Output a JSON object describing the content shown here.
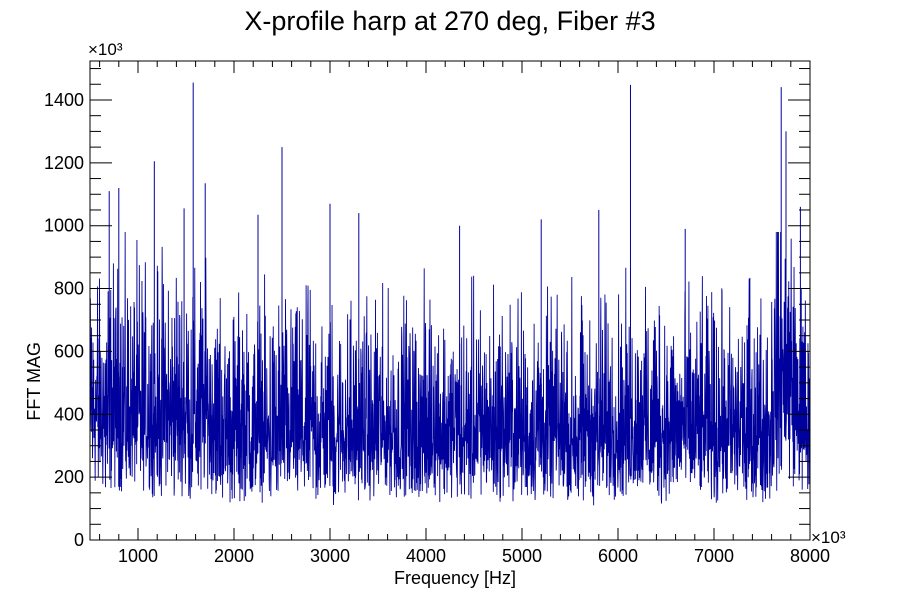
{
  "chart_data": {
    "type": "line",
    "title": "X-profile harp at 270 deg, Fiber #3",
    "xlabel": "Frequency [Hz]",
    "ylabel": "FFT MAG",
    "x_multiplier": "×10³",
    "y_multiplier": "×10³",
    "xlim": [
      500,
      8000
    ],
    "ylim": [
      0,
      1524
    ],
    "x_ticks": [
      1000,
      2000,
      3000,
      4000,
      5000,
      6000,
      7000,
      8000
    ],
    "y_ticks": [
      0,
      200,
      400,
      600,
      800,
      1000,
      1200,
      1400
    ],
    "grid": false,
    "legend": "none",
    "series_color": "#00009c",
    "baseline_level": 420,
    "notable_peaks": [
      {
        "x": 700,
        "y": 1110
      },
      {
        "x": 800,
        "y": 1120
      },
      {
        "x": 1170,
        "y": 1205
      },
      {
        "x": 1480,
        "y": 1055
      },
      {
        "x": 1575,
        "y": 1455
      },
      {
        "x": 1700,
        "y": 1135
      },
      {
        "x": 2250,
        "y": 1035
      },
      {
        "x": 2500,
        "y": 1250
      },
      {
        "x": 3000,
        "y": 1070
      },
      {
        "x": 3300,
        "y": 1040
      },
      {
        "x": 4350,
        "y": 1000
      },
      {
        "x": 5200,
        "y": 1020
      },
      {
        "x": 5800,
        "y": 1050
      },
      {
        "x": 6130,
        "y": 1448
      },
      {
        "x": 6700,
        "y": 990
      },
      {
        "x": 7700,
        "y": 1441
      },
      {
        "x": 7750,
        "y": 1300
      },
      {
        "x": 7900,
        "y": 1060
      }
    ]
  }
}
